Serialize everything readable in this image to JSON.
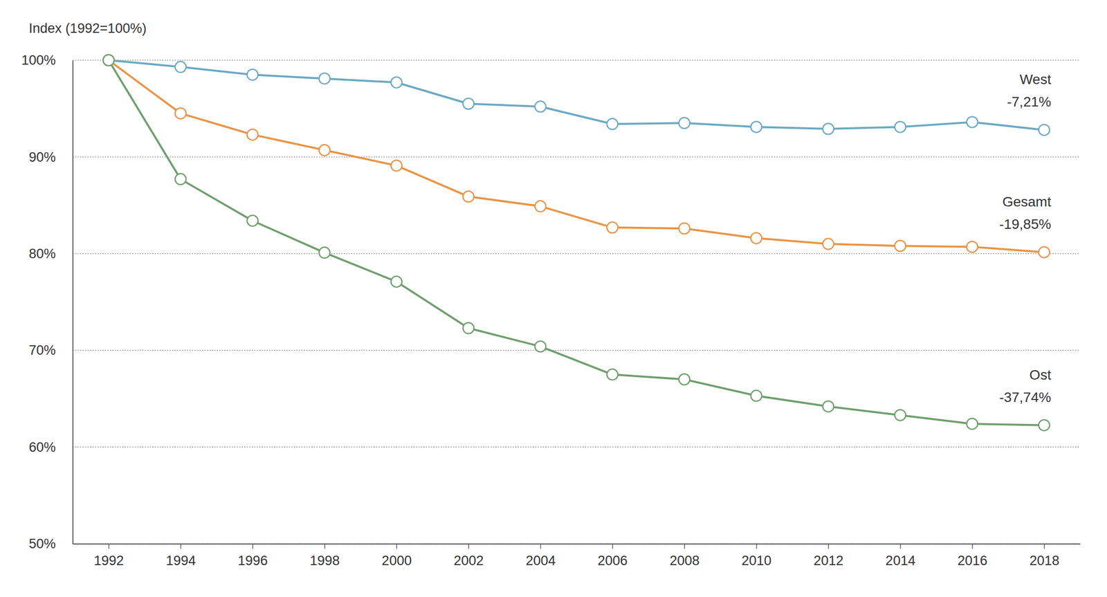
{
  "chart_data": {
    "type": "line",
    "y_label": "Index (1992=100%)",
    "x": [
      1992,
      1994,
      1996,
      1998,
      2000,
      2002,
      2004,
      2006,
      2008,
      2010,
      2012,
      2014,
      2016,
      2018
    ],
    "xlim": [
      1991,
      2019
    ],
    "xticks": [
      1992,
      1994,
      1996,
      1998,
      2000,
      2002,
      2004,
      2006,
      2008,
      2010,
      2012,
      2014,
      2016,
      2018
    ],
    "ylim": [
      50,
      100
    ],
    "yticks": [
      {
        "value": 50,
        "label": "50%"
      },
      {
        "value": 60,
        "label": "60%"
      },
      {
        "value": 70,
        "label": "70%"
      },
      {
        "value": 80,
        "label": "80%"
      },
      {
        "value": 90,
        "label": "90%"
      },
      {
        "value": 100,
        "label": "100%"
      }
    ],
    "grid": true,
    "marker": "circle",
    "series": [
      {
        "name": "West",
        "annotation": "-7,21%",
        "color": "#6ba9c4",
        "values": [
          100,
          99.3,
          98.5,
          98.1,
          97.7,
          95.5,
          95.2,
          93.4,
          93.5,
          93.1,
          92.9,
          93.1,
          93.6,
          92.79
        ]
      },
      {
        "name": "Gesamt",
        "annotation": "-19,85%",
        "color": "#ea9445",
        "values": [
          100,
          94.5,
          92.3,
          90.7,
          89.1,
          85.9,
          84.9,
          82.7,
          82.6,
          81.6,
          81.0,
          80.8,
          80.7,
          80.15
        ]
      },
      {
        "name": "Ost",
        "annotation": "-37,74%",
        "color": "#6f9f6d",
        "values": [
          100,
          87.7,
          83.4,
          80.1,
          77.1,
          72.3,
          70.4,
          67.5,
          67.0,
          65.3,
          64.2,
          63.3,
          62.4,
          62.26
        ]
      }
    ]
  }
}
